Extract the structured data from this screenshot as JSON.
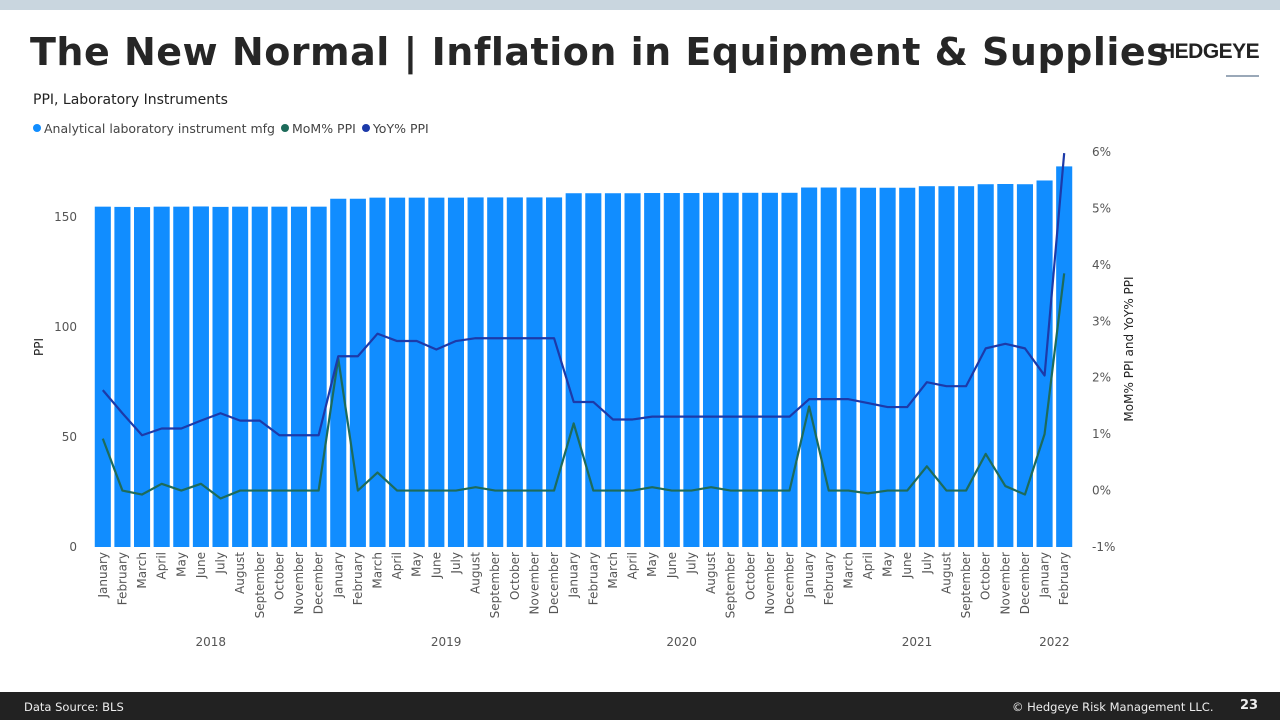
{
  "header": {
    "title": "The New Normal | Inflation in Equipment & Supplies",
    "logo": "HEDGEYE"
  },
  "footer": {
    "source": "Data Source: BLS",
    "copyright": "© Hedgeye Risk Management LLC.",
    "page_number": "23"
  },
  "chart_data": {
    "type": "bar+line",
    "title": "PPI, Laboratory Instruments",
    "ylabel": "PPI",
    "y2label": "MoM% PPI and YoY% PPI",
    "ylim": [
      0,
      185
    ],
    "y2lim": [
      -1,
      6
    ],
    "yticks": [
      "0",
      "50",
      "100",
      "150"
    ],
    "y2ticks": [
      "-1%",
      "0%",
      "1%",
      "2%",
      "3%",
      "4%",
      "5%",
      "6%"
    ],
    "grid": false,
    "legend_placement": "top-left",
    "years": [
      {
        "label": "2018",
        "months": 12
      },
      {
        "label": "2019",
        "months": 12
      },
      {
        "label": "2020",
        "months": 12
      },
      {
        "label": "2021",
        "months": 12
      },
      {
        "label": "2022",
        "months": 2
      }
    ],
    "categories": [
      "January",
      "February",
      "March",
      "April",
      "May",
      "June",
      "July",
      "August",
      "September",
      "October",
      "November",
      "December",
      "January",
      "February",
      "March",
      "April",
      "May",
      "June",
      "July",
      "August",
      "September",
      "October",
      "November",
      "December",
      "January",
      "February",
      "March",
      "April",
      "May",
      "June",
      "July",
      "August",
      "September",
      "October",
      "November",
      "December",
      "January",
      "February",
      "March",
      "April",
      "May",
      "June",
      "July",
      "August",
      "September",
      "October",
      "November",
      "December",
      "January",
      "February"
    ],
    "series": [
      {
        "name": "Analytical laboratory instrument mfg",
        "kind": "bar",
        "axis": "left",
        "color": "#118dff",
        "values": [
          154.7,
          154.6,
          154.5,
          154.7,
          154.7,
          154.8,
          154.6,
          154.7,
          154.7,
          154.7,
          154.7,
          154.7,
          158.3,
          158.3,
          158.8,
          158.8,
          158.8,
          158.8,
          158.8,
          158.9,
          158.9,
          158.9,
          158.9,
          158.9,
          160.8,
          160.8,
          160.8,
          160.8,
          160.9,
          160.9,
          160.9,
          161.0,
          161.0,
          161.0,
          161.0,
          161.0,
          163.4,
          163.4,
          163.4,
          163.3,
          163.3,
          163.3,
          164.0,
          164.0,
          164.0,
          164.9,
          165.0,
          164.9,
          166.6,
          173.0
        ]
      },
      {
        "name": "MoM% PPI",
        "kind": "line",
        "axis": "right",
        "color": "#1d6b5a",
        "values": [
          0.92,
          0.0,
          -0.07,
          0.12,
          0.0,
          0.12,
          -0.14,
          0.0,
          0.0,
          0.0,
          0.0,
          0.0,
          2.34,
          0.0,
          0.32,
          0.0,
          0.0,
          0.0,
          0.0,
          0.06,
          0.0,
          0.0,
          0.0,
          0.0,
          1.19,
          0.0,
          0.0,
          0.0,
          0.06,
          0.0,
          0.0,
          0.06,
          0.0,
          0.0,
          0.0,
          0.0,
          1.49,
          0.0,
          0.0,
          -0.05,
          0.0,
          0.0,
          0.43,
          0.0,
          0.0,
          0.65,
          0.08,
          -0.07,
          1.0,
          3.85
        ]
      },
      {
        "name": "YoY% PPI",
        "kind": "line",
        "axis": "right",
        "color": "#1c3aa9",
        "values": [
          1.78,
          1.37,
          0.98,
          1.1,
          1.1,
          1.24,
          1.37,
          1.24,
          1.24,
          0.98,
          0.98,
          0.98,
          2.38,
          2.38,
          2.78,
          2.65,
          2.65,
          2.5,
          2.65,
          2.7,
          2.7,
          2.7,
          2.7,
          2.7,
          1.57,
          1.57,
          1.26,
          1.26,
          1.31,
          1.31,
          1.31,
          1.31,
          1.31,
          1.31,
          1.31,
          1.31,
          1.62,
          1.62,
          1.62,
          1.55,
          1.48,
          1.48,
          1.92,
          1.85,
          1.85,
          2.52,
          2.6,
          2.52,
          2.04,
          5.98
        ]
      }
    ]
  }
}
